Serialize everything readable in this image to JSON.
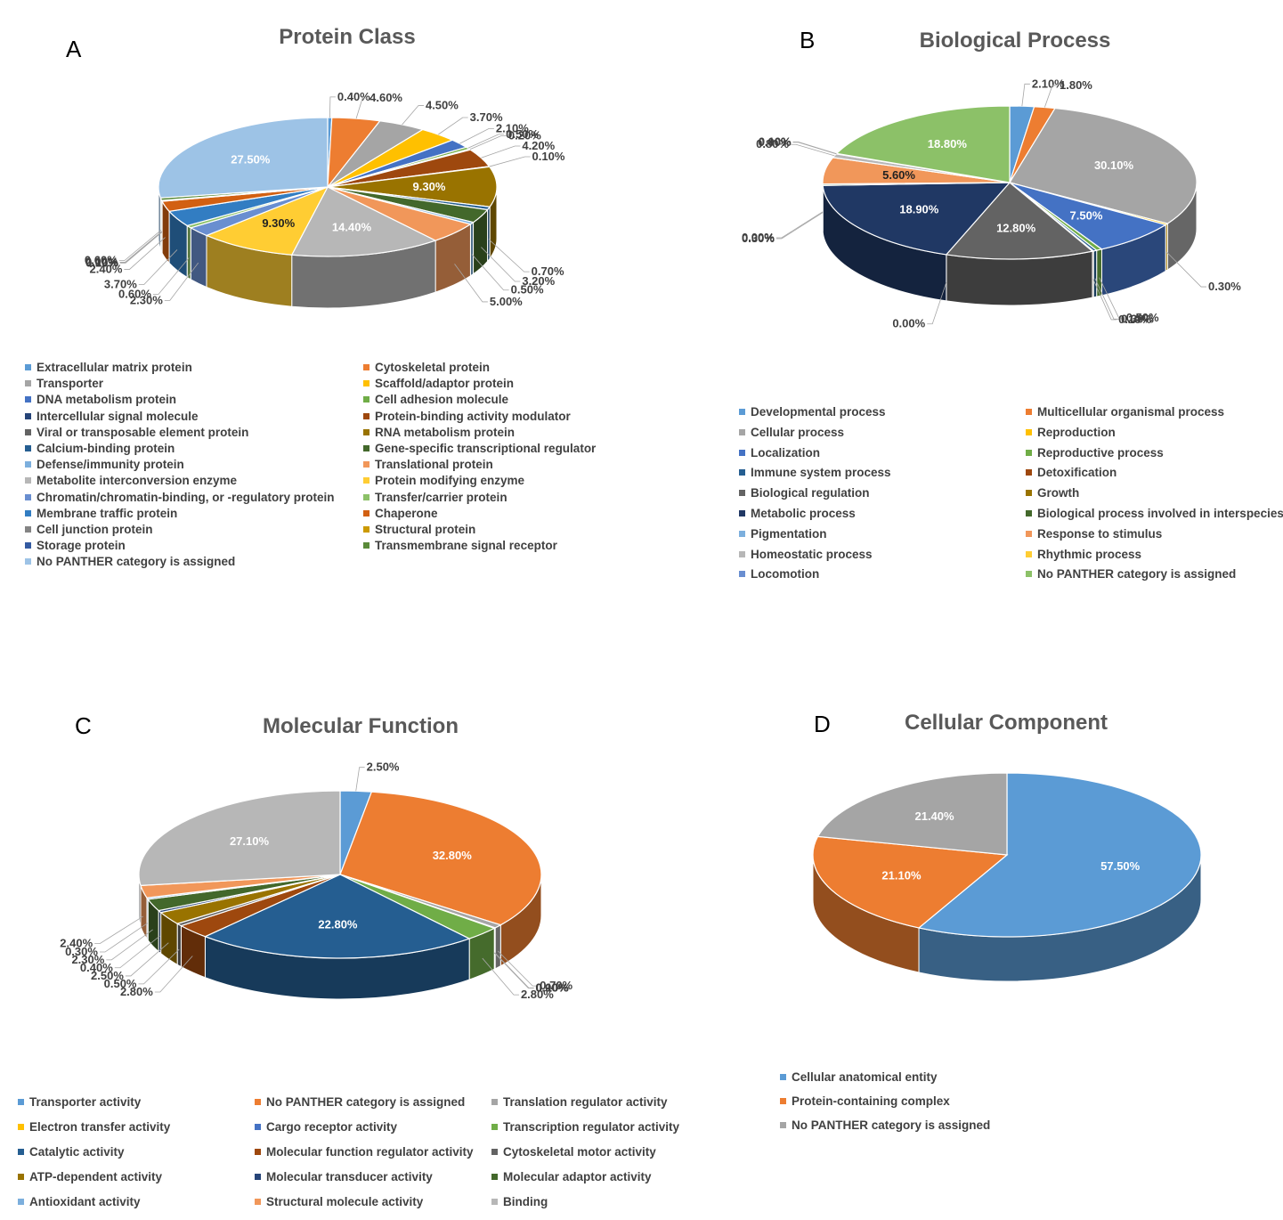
{
  "panels": [
    {
      "letter": "A",
      "chart_data": {
        "type": "pie",
        "title": "Protein Class",
        "slices": [
          {
            "label": "Extracellular matrix protein",
            "value": 0.4,
            "display": "0.40%",
            "color": "#5b9bd5"
          },
          {
            "label": "Cytoskeletal protein",
            "value": 4.6,
            "display": "4.60%",
            "color": "#ed7d31"
          },
          {
            "label": "Transporter",
            "value": 4.5,
            "display": "4.50%",
            "color": "#a5a5a5"
          },
          {
            "label": "Scaffold/adaptor protein",
            "value": 3.7,
            "display": "3.70%",
            "color": "#ffc000"
          },
          {
            "label": "DNA metabolism protein",
            "value": 2.1,
            "display": "2.10%",
            "color": "#4472c4"
          },
          {
            "label": "Cell adhesion molecule",
            "value": 0.5,
            "display": "0.50%",
            "color": "#70ad47"
          },
          {
            "label": "Intercellular signal molecule",
            "value": 0.2,
            "display": "0.20%",
            "color": "#264478"
          },
          {
            "label": "Protein-binding activity modulator",
            "value": 4.2,
            "display": "4.20%",
            "color": "#9e480e"
          },
          {
            "label": "Viral or transposable element protein",
            "value": 0.1,
            "display": "0.10%",
            "color": "#636363"
          },
          {
            "label": "RNA metabolism protein",
            "value": 9.3,
            "display": "9.30%",
            "color": "#997300"
          },
          {
            "label": "Calcium-binding protein",
            "value": 0.7,
            "display": "0.70%",
            "color": "#255e91"
          },
          {
            "label": "Gene-specific transcriptional regulator",
            "value": 3.2,
            "display": "3.20%",
            "color": "#43682b"
          },
          {
            "label": "Defense/immunity protein",
            "value": 0.5,
            "display": "0.50%",
            "color": "#7cafdd"
          },
          {
            "label": "Translational protein",
            "value": 5.0,
            "display": "5.00%",
            "color": "#f1975a"
          },
          {
            "label": "Metabolite interconversion enzyme",
            "value": 14.4,
            "display": "14.40%",
            "color": "#b7b7b7"
          },
          {
            "label": "Protein modifying enzyme",
            "value": 9.3,
            "display": "9.30%",
            "color": "#ffcd33"
          },
          {
            "label": "Chromatin/chromatin-binding, or -regulatory protein",
            "value": 2.3,
            "display": "2.30%",
            "color": "#698ed0"
          },
          {
            "label": "Transfer/carrier protein",
            "value": 0.6,
            "display": "0.60%",
            "color": "#8cc168"
          },
          {
            "label": "Membrane traffic protein",
            "value": 3.7,
            "display": "3.70%",
            "color": "#327dc2"
          },
          {
            "label": "Chaperone",
            "value": 2.4,
            "display": "2.40%",
            "color": "#d26012"
          },
          {
            "label": "Cell junction protein",
            "value": 0.1,
            "display": "0.10%",
            "color": "#848484"
          },
          {
            "label": "Structural protein",
            "value": 0.1,
            "display": "0.10%",
            "color": "#cc9a00"
          },
          {
            "label": "Storage protein",
            "value": 0.0,
            "display": "0.00%",
            "color": "#335aa1"
          },
          {
            "label": "Transmembrane signal receptor",
            "value": 0.6,
            "display": "0.60%",
            "color": "#5a8a39"
          },
          {
            "label": "No PANTHER category is assigned",
            "value": 27.5,
            "display": "27.50%",
            "color": "#9dc3e6"
          }
        ]
      }
    },
    {
      "letter": "B",
      "chart_data": {
        "type": "pie",
        "title": "Biological Process",
        "slices": [
          {
            "label": "Developmental process",
            "value": 2.1,
            "display": "2.10%",
            "color": "#5b9bd5"
          },
          {
            "label": "Multicellular organismal process",
            "value": 1.8,
            "display": "1.80%",
            "color": "#ed7d31"
          },
          {
            "label": "Cellular process",
            "value": 30.1,
            "display": "30.10%",
            "color": "#a5a5a5"
          },
          {
            "label": "Reproduction",
            "value": 0.3,
            "display": "0.30%",
            "color": "#ffc000"
          },
          {
            "label": "Localization",
            "value": 7.5,
            "display": "7.50%",
            "color": "#4472c4"
          },
          {
            "label": "Reproductive process",
            "value": 0.5,
            "display": "0.50%",
            "color": "#70ad47"
          },
          {
            "label": "Immune system process",
            "value": 0.3,
            "display": "0.30%",
            "color": "#255e91"
          },
          {
            "label": "Detoxification",
            "value": 0.1,
            "display": "0.10%",
            "color": "#9e480e"
          },
          {
            "label": "Biological regulation",
            "value": 12.8,
            "display": "12.80%",
            "color": "#636363"
          },
          {
            "label": "Growth",
            "value": 0.0,
            "display": "0.00%",
            "color": "#997300"
          },
          {
            "label": "Metabolic process",
            "value": 18.9,
            "display": "18.90%",
            "color": "#203864"
          },
          {
            "label": "Biological process involved in interspecies",
            "value": 0.3,
            "display": "0.30%",
            "color": "#43682b"
          },
          {
            "label": "Pigmentation",
            "value": 0.0,
            "display": "0.00%",
            "color": "#7cafdd"
          },
          {
            "label": "Response to stimulus",
            "value": 5.6,
            "display": "5.60%",
            "color": "#f1975a"
          },
          {
            "label": "Homeostatic process",
            "value": 0.8,
            "display": "0.80%",
            "color": "#b7b7b7"
          },
          {
            "label": "Rhythmic process",
            "value": 0.0,
            "display": "0.00%",
            "color": "#ffcd33"
          },
          {
            "label": "Locomotion",
            "value": 0.1,
            "display": "0.10%",
            "color": "#698ed0"
          },
          {
            "label": "No PANTHER category is assigned",
            "value": 18.8,
            "display": "18.80%",
            "color": "#8cc168"
          }
        ]
      }
    },
    {
      "letter": "C",
      "chart_data": {
        "type": "pie",
        "title": "Molecular Function",
        "slices": [
          {
            "label": "Transporter activity",
            "value": 2.5,
            "display": "2.50%",
            "color": "#5b9bd5"
          },
          {
            "label": "No PANTHER category is assigned",
            "value": 32.8,
            "display": "32.80%",
            "color": "#ed7d31"
          },
          {
            "label": "Translation regulator activity",
            "value": 0.7,
            "display": "0.70%",
            "color": "#a5a5a5"
          },
          {
            "label": "Electron transfer activity",
            "value": 0.1,
            "display": "0.10%",
            "color": "#ffc000"
          },
          {
            "label": "Cargo receptor activity",
            "value": 0.0,
            "display": "0.00%",
            "color": "#4472c4"
          },
          {
            "label": "Transcription regulator activity",
            "value": 2.8,
            "display": "2.80%",
            "color": "#70ad47"
          },
          {
            "label": "Catalytic activity",
            "value": 22.8,
            "display": "22.80%",
            "color": "#255e91"
          },
          {
            "label": "Molecular function regulator activity",
            "value": 2.8,
            "display": "2.80%",
            "color": "#9e480e"
          },
          {
            "label": "Cytoskeletal motor activity",
            "value": 0.5,
            "display": "0.50%",
            "color": "#636363"
          },
          {
            "label": "ATP-dependent activity",
            "value": 2.5,
            "display": "2.50%",
            "color": "#997300"
          },
          {
            "label": "Molecular transducer activity",
            "value": 0.4,
            "display": "0.40%",
            "color": "#264478"
          },
          {
            "label": "Molecular adaptor activity",
            "value": 2.3,
            "display": "2.30%",
            "color": "#43682b"
          },
          {
            "label": "Antioxidant activity",
            "value": 0.3,
            "display": "0.30%",
            "color": "#7cafdd"
          },
          {
            "label": "Structural molecule activity",
            "value": 2.4,
            "display": "2.40%",
            "color": "#f1975a"
          },
          {
            "label": "Binding",
            "value": 27.1,
            "display": "27.10%",
            "color": "#b7b7b7"
          }
        ]
      }
    },
    {
      "letter": "D",
      "chart_data": {
        "type": "pie",
        "title": "Cellular Component",
        "slices": [
          {
            "label": "Cellular anatomical entity",
            "value": 57.5,
            "display": "57.50%",
            "color": "#5b9bd5"
          },
          {
            "label": "Protein-containing complex",
            "value": 21.1,
            "display": "21.10%",
            "color": "#ed7d31"
          },
          {
            "label": "No PANTHER category is assigned",
            "value": 21.4,
            "display": "21.40%",
            "color": "#a5a5a5"
          }
        ]
      }
    }
  ]
}
